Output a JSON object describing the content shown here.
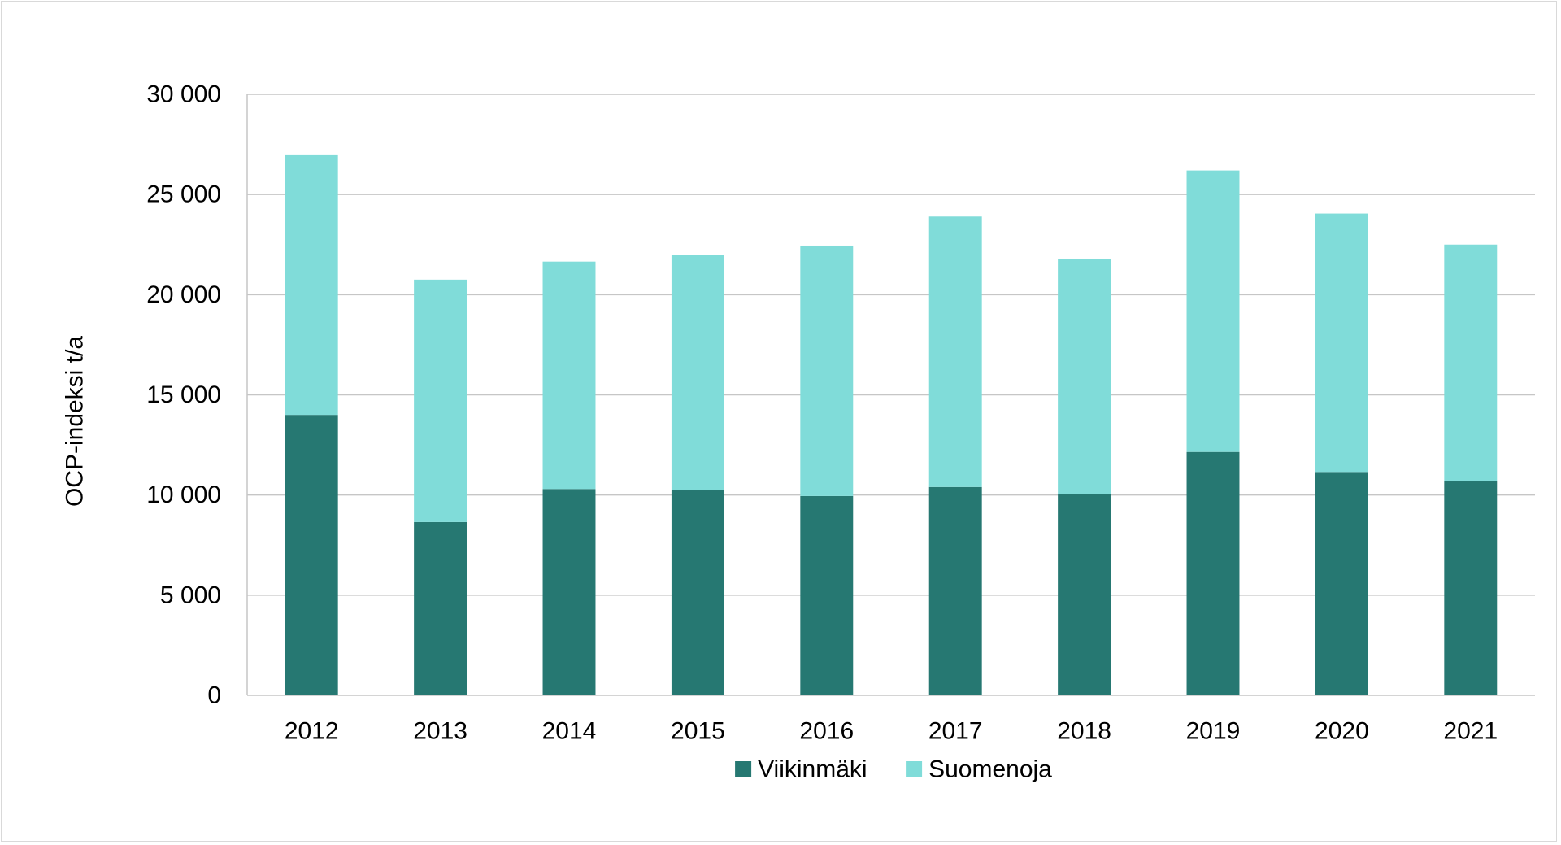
{
  "chart_data": {
    "type": "bar",
    "stacked": true,
    "title": "",
    "xlabel": "",
    "ylabel": "OCP-indeksi t/a",
    "categories": [
      "2012",
      "2013",
      "2014",
      "2015",
      "2016",
      "2017",
      "2018",
      "2019",
      "2020",
      "2021"
    ],
    "series": [
      {
        "name": "Viikinmäki",
        "color": "#267872",
        "values": [
          14000,
          8650,
          10300,
          10250,
          9950,
          10400,
          10050,
          12150,
          11150,
          10700
        ]
      },
      {
        "name": "Suomenoja",
        "color": "#80dcd9",
        "values": [
          13000,
          12100,
          11350,
          11750,
          12500,
          13500,
          11750,
          14050,
          12900,
          11800
        ]
      }
    ],
    "ylim": [
      0,
      30000
    ],
    "yticks": [
      0,
      5000,
      10000,
      15000,
      20000,
      25000,
      30000
    ],
    "ytick_labels": [
      "0",
      "5 000",
      "10 000",
      "15 000",
      "20 000",
      "25 000",
      "30 000"
    ],
    "grid": true,
    "gridColor": "#c6c6c6",
    "legend": {
      "position": "bottom",
      "entries": [
        "Viikinmäki",
        "Suomenoja"
      ]
    }
  }
}
